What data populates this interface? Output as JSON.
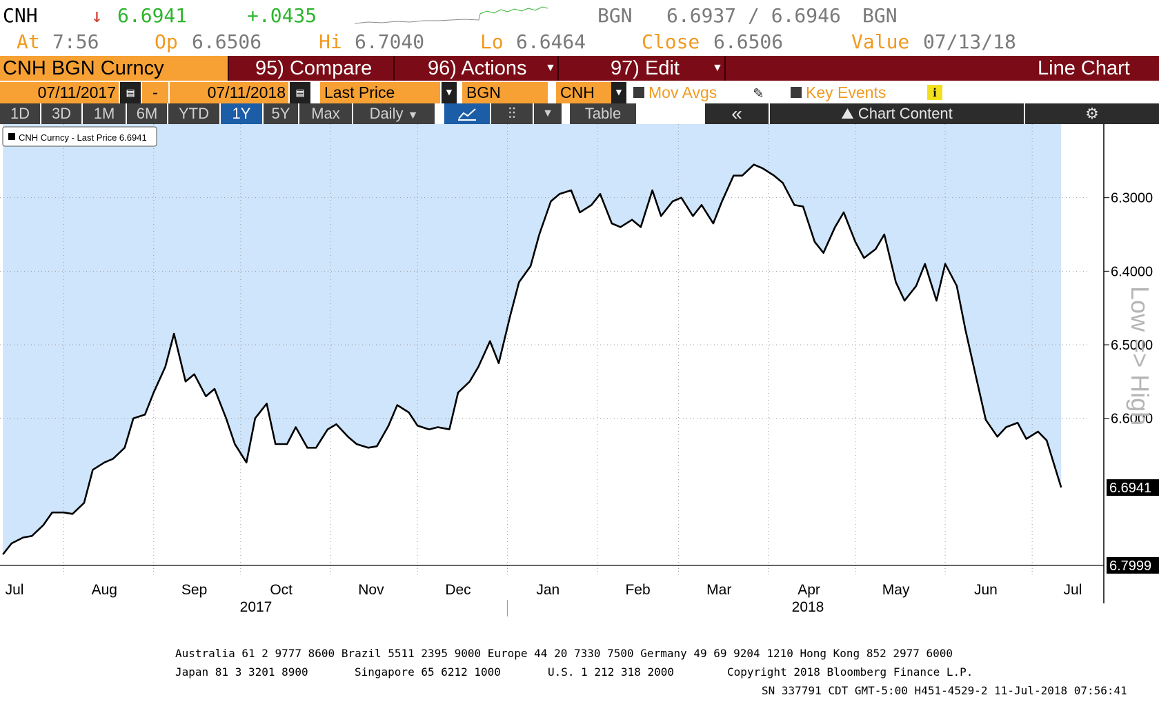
{
  "quote": {
    "ticker": "CNH",
    "arrow": "↓",
    "last": "6.6941",
    "change": "+.0435",
    "bid_src": "BGN",
    "bid_ask": "6.6937 / 6.6946",
    "ask_src": "BGN",
    "at_label": "At",
    "at_time": "7:56",
    "open_label": "Op",
    "open": "6.6506",
    "high_label": "Hi",
    "high": "6.7040",
    "low_label": "Lo",
    "low": "6.6464",
    "close_label": "Close",
    "close": "6.6506",
    "value_label": "Value",
    "value_date": "07/13/18"
  },
  "toolbar": {
    "security": "CNH BGN Curncy",
    "compare": "95) Compare",
    "actions": "96) Actions",
    "edit": "97) Edit",
    "chart_type": "Line Chart",
    "start_date": "07/11/2017",
    "date_sep": "-",
    "end_date": "07/11/2018",
    "field": "Last Price",
    "source": "BGN",
    "currency": "CNH",
    "mov_avgs": "Mov Avgs",
    "key_events": "Key Events",
    "info": "i"
  },
  "periods": [
    "1D",
    "3D",
    "1M",
    "6M",
    "YTD",
    "1Y",
    "5Y",
    "Max"
  ],
  "active_period": "1Y",
  "frequency": "Daily",
  "table_label": "Table",
  "collapse_label": "«",
  "chart_content_label": "Chart Content",
  "colors": {
    "orange": "#f29a1f",
    "bar_red": "#7b0c17",
    "fill_blue": "#cfe5fb",
    "line": "#000000",
    "green": "#2db52d",
    "red": "#d23b2b"
  },
  "chart_data": {
    "type": "line",
    "y_axis_inverted": true,
    "ylim": [
      6.8,
      6.2
    ],
    "y_ticks": [
      "6.3000",
      "6.4000",
      "6.5000",
      "6.6000"
    ],
    "y_tick_values": [
      6.3,
      6.4,
      6.5,
      6.6
    ],
    "last_label": "6.6941",
    "last_value": 6.6941,
    "low_label": "6.7999",
    "low_value": 6.7999,
    "axis_side_label": "Low => High",
    "legend": "CNH Curncy - Last Price 6.6941",
    "x_months": [
      "Jul",
      "Aug",
      "Sep",
      "Oct",
      "Nov",
      "Dec",
      "Jan",
      "Feb",
      "Mar",
      "Apr",
      "May",
      "Jun",
      "Jul"
    ],
    "x_years": [
      "2017",
      "2018"
    ],
    "fill_area": true,
    "series": [
      {
        "x": [
          "2017-07-11",
          "2017-07-14",
          "2017-07-18",
          "2017-07-21",
          "2017-07-25",
          "2017-07-28",
          "2017-08-01",
          "2017-08-04",
          "2017-08-08",
          "2017-08-11",
          "2017-08-15",
          "2017-08-18",
          "2017-08-22",
          "2017-08-25",
          "2017-08-29",
          "2017-09-01",
          "2017-09-05",
          "2017-09-08",
          "2017-09-12",
          "2017-09-15",
          "2017-09-19",
          "2017-09-22",
          "2017-09-26",
          "2017-09-29",
          "2017-10-03",
          "2017-10-06",
          "2017-10-10",
          "2017-10-13",
          "2017-10-17",
          "2017-10-20",
          "2017-10-24",
          "2017-10-27",
          "2017-10-31",
          "2017-11-03",
          "2017-11-07",
          "2017-11-10",
          "2017-11-14",
          "2017-11-17",
          "2017-11-21",
          "2017-11-24",
          "2017-11-28",
          "2017-12-01",
          "2017-12-05",
          "2017-12-08",
          "2017-12-12",
          "2017-12-15",
          "2017-12-19",
          "2017-12-22",
          "2017-12-26",
          "2017-12-29",
          "2018-01-02",
          "2018-01-05",
          "2018-01-09",
          "2018-01-12",
          "2018-01-16",
          "2018-01-19",
          "2018-01-23",
          "2018-01-26",
          "2018-01-30",
          "2018-02-02",
          "2018-02-06",
          "2018-02-09",
          "2018-02-13",
          "2018-02-16",
          "2018-02-20",
          "2018-02-23",
          "2018-02-27",
          "2018-03-02",
          "2018-03-06",
          "2018-03-09",
          "2018-03-13",
          "2018-03-16",
          "2018-03-20",
          "2018-03-23",
          "2018-03-27",
          "2018-03-30",
          "2018-04-03",
          "2018-04-06",
          "2018-04-10",
          "2018-04-13",
          "2018-04-17",
          "2018-04-20",
          "2018-04-24",
          "2018-04-27",
          "2018-05-01",
          "2018-05-04",
          "2018-05-08",
          "2018-05-11",
          "2018-05-15",
          "2018-05-18",
          "2018-05-22",
          "2018-05-25",
          "2018-05-29",
          "2018-06-01",
          "2018-06-05",
          "2018-06-08",
          "2018-06-12",
          "2018-06-15",
          "2018-06-19",
          "2018-06-22",
          "2018-06-26",
          "2018-06-29",
          "2018-07-03",
          "2018-07-06",
          "2018-07-11"
        ],
        "values": [
          6.785,
          6.77,
          6.762,
          6.76,
          6.745,
          6.728,
          6.728,
          6.73,
          6.715,
          6.67,
          6.66,
          6.655,
          6.64,
          6.6,
          6.595,
          6.565,
          6.53,
          6.485,
          6.55,
          6.54,
          6.57,
          6.56,
          6.6,
          6.635,
          6.66,
          6.6,
          6.58,
          6.635,
          6.635,
          6.612,
          6.64,
          6.64,
          6.615,
          6.608,
          6.625,
          6.635,
          6.64,
          6.638,
          6.61,
          6.582,
          6.592,
          6.61,
          6.615,
          6.612,
          6.615,
          6.565,
          6.55,
          6.53,
          6.495,
          6.525,
          6.46,
          6.415,
          6.393,
          6.35,
          6.305,
          6.295,
          6.29,
          6.32,
          6.31,
          6.295,
          6.335,
          6.34,
          6.33,
          6.34,
          6.29,
          6.325,
          6.305,
          6.3,
          6.325,
          6.31,
          6.335,
          6.305,
          6.27,
          6.27,
          6.255,
          6.26,
          6.27,
          6.28,
          6.31,
          6.312,
          6.36,
          6.375,
          6.34,
          6.32,
          6.36,
          6.382,
          6.37,
          6.35,
          6.415,
          6.44,
          6.42,
          6.39,
          6.44,
          6.39,
          6.42,
          6.48,
          6.55,
          6.602,
          6.625,
          6.612,
          6.606,
          6.628,
          6.618,
          6.63,
          6.694
        ]
      }
    ]
  },
  "footer": {
    "line1": "Australia 61 2 9777 8600 Brazil 5511 2395 9000 Europe 44 20 7330 7500 Germany 49 69 9204 1210 Hong Kong 852 2977 6000",
    "line2a": "Japan 81 3 3201 8900",
    "line2b": "Singapore 65 6212 1000",
    "line2c": "U.S. 1 212 318 2000",
    "line2d": "Copyright 2018 Bloomberg Finance L.P.",
    "line3": "SN 337791 CDT  GMT-5:00 H451-4529-2 11-Jul-2018 07:56:41"
  }
}
